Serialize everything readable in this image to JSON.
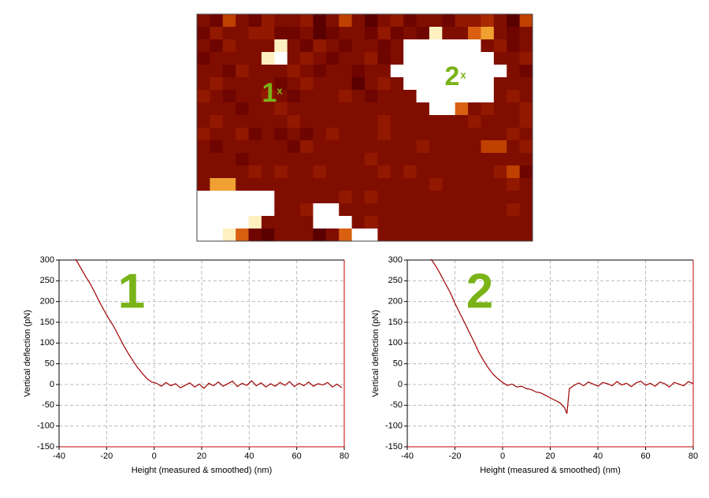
{
  "chart_data": [
    {
      "type": "heatmap",
      "colors": [
        "#400000",
        "#5a0000",
        "#6e0500",
        "#800e00",
        "#921800",
        "#a82a00",
        "#c04000",
        "#d86010",
        "#f0a030",
        "#fff0c0",
        "#ffffff"
      ],
      "values": [
        [
          3,
          2,
          6,
          3,
          2,
          4,
          3,
          3,
          4,
          1,
          3,
          6,
          3,
          1,
          3,
          4,
          2,
          3,
          3,
          2,
          4,
          4,
          5,
          3,
          1,
          6
        ],
        [
          2,
          4,
          3,
          3,
          4,
          4,
          2,
          2,
          3,
          1,
          2,
          3,
          3,
          2,
          4,
          2,
          3,
          2,
          9,
          3,
          3,
          7,
          8,
          3,
          2,
          3
        ],
        [
          3,
          2,
          4,
          3,
          3,
          3,
          9,
          3,
          2,
          4,
          3,
          2,
          3,
          3,
          2,
          3,
          10,
          10,
          10,
          10,
          10,
          10,
          3,
          4,
          2,
          3
        ],
        [
          2,
          3,
          3,
          3,
          3,
          9,
          10,
          3,
          4,
          3,
          2,
          3,
          3,
          4,
          2,
          3,
          10,
          10,
          10,
          10,
          10,
          10,
          10,
          3,
          3,
          4
        ],
        [
          3,
          3,
          2,
          4,
          3,
          3,
          3,
          4,
          3,
          2,
          3,
          3,
          2,
          3,
          3,
          10,
          10,
          10,
          10,
          10,
          10,
          10,
          10,
          10,
          3,
          2
        ],
        [
          3,
          4,
          3,
          3,
          3,
          3,
          2,
          3,
          4,
          3,
          3,
          3,
          1,
          3,
          4,
          3,
          10,
          10,
          10,
          10,
          10,
          10,
          10,
          3,
          3,
          3
        ],
        [
          4,
          3,
          2,
          3,
          3,
          4,
          3,
          2,
          3,
          3,
          3,
          4,
          3,
          2,
          3,
          3,
          3,
          10,
          10,
          10,
          10,
          10,
          10,
          3,
          4,
          3
        ],
        [
          3,
          3,
          3,
          2,
          3,
          3,
          4,
          3,
          3,
          3,
          3,
          3,
          3,
          3,
          3,
          3,
          3,
          3,
          10,
          10,
          7,
          3,
          4,
          3,
          3,
          4
        ],
        [
          3,
          4,
          3,
          3,
          3,
          3,
          3,
          4,
          3,
          3,
          3,
          3,
          3,
          3,
          4,
          3,
          3,
          3,
          3,
          3,
          3,
          4,
          3,
          3,
          3,
          4
        ],
        [
          4,
          3,
          3,
          4,
          2,
          3,
          2,
          3,
          2,
          3,
          4,
          3,
          3,
          3,
          4,
          3,
          3,
          3,
          3,
          3,
          3,
          3,
          3,
          3,
          4,
          3
        ],
        [
          3,
          2,
          3,
          3,
          3,
          3,
          3,
          2,
          4,
          3,
          3,
          3,
          3,
          3,
          3,
          3,
          3,
          4,
          3,
          3,
          3,
          3,
          6,
          6,
          3,
          4
        ],
        [
          3,
          3,
          3,
          2,
          3,
          3,
          3,
          3,
          3,
          3,
          3,
          3,
          3,
          4,
          3,
          3,
          3,
          3,
          3,
          3,
          3,
          3,
          3,
          3,
          3,
          3
        ],
        [
          3,
          3,
          3,
          3,
          4,
          3,
          4,
          3,
          3,
          4,
          3,
          3,
          3,
          3,
          4,
          3,
          4,
          3,
          3,
          3,
          3,
          3,
          3,
          4,
          6,
          2
        ],
        [
          3,
          8,
          8,
          3,
          3,
          3,
          3,
          3,
          3,
          3,
          3,
          3,
          3,
          3,
          3,
          3,
          3,
          3,
          4,
          3,
          3,
          3,
          3,
          3,
          4,
          3
        ],
        [
          10,
          10,
          10,
          10,
          10,
          10,
          3,
          3,
          3,
          3,
          3,
          4,
          3,
          4,
          3,
          3,
          3,
          3,
          3,
          3,
          3,
          3,
          3,
          3,
          3,
          3
        ],
        [
          10,
          10,
          10,
          10,
          10,
          10,
          3,
          3,
          4,
          10,
          10,
          3,
          3,
          3,
          3,
          3,
          3,
          3,
          3,
          3,
          3,
          3,
          3,
          3,
          4,
          3
        ],
        [
          10,
          10,
          10,
          10,
          9,
          3,
          3,
          3,
          3,
          10,
          10,
          10,
          3,
          4,
          3,
          3,
          3,
          3,
          3,
          3,
          3,
          3,
          3,
          3,
          3,
          3
        ],
        [
          10,
          10,
          9,
          7,
          2,
          1,
          3,
          3,
          3,
          1,
          3,
          7,
          10,
          10,
          3,
          3,
          3,
          3,
          3,
          3,
          3,
          3,
          3,
          3,
          3,
          3
        ]
      ],
      "annotations": [
        "1",
        "x",
        "2",
        "x"
      ]
    },
    {
      "type": "line",
      "annotation": "1",
      "xlabel": "Height (measured & smoothed) (nm)",
      "ylabel": "Vertical deflection  (pN)",
      "xlim": [
        -40,
        80
      ],
      "xticks": [
        -40,
        -20,
        0,
        20,
        40,
        60,
        80
      ],
      "ylim": [
        -150,
        300
      ],
      "yticks": [
        -150,
        -100,
        -50,
        0,
        50,
        100,
        150,
        200,
        250,
        300
      ],
      "grid": true,
      "x": [
        -33,
        -31,
        -29,
        -27,
        -25,
        -23,
        -21,
        -19,
        -17,
        -15,
        -13,
        -11,
        -9,
        -7,
        -5,
        -3,
        -1,
        1,
        3,
        5,
        7,
        9,
        11,
        13,
        15,
        17,
        19,
        21,
        23,
        25,
        27,
        29,
        31,
        33,
        35,
        37,
        39,
        41,
        43,
        45,
        47,
        49,
        51,
        53,
        55,
        57,
        59,
        61,
        63,
        65,
        67,
        69,
        71,
        73,
        75,
        77,
        79
      ],
      "series": [
        {
          "color": "#a00000",
          "values": [
            302,
            282,
            262,
            244,
            222,
            199,
            178,
            158,
            140,
            118,
            96,
            76,
            58,
            41,
            27,
            14,
            6,
            3,
            -4,
            5,
            -3,
            2,
            -8,
            -2,
            4,
            -6,
            1,
            -9,
            3,
            -3,
            6,
            -4,
            2,
            8,
            -5,
            3,
            -2,
            9,
            -3,
            4,
            -6,
            2,
            -4,
            5,
            -2,
            7,
            -5,
            3,
            -3,
            6,
            -4,
            2,
            -1,
            5,
            -6,
            1,
            -8
          ]
        }
      ]
    },
    {
      "type": "line",
      "annotation": "2",
      "xlabel": "Height (measured & smoothed) (nm)",
      "ylabel": "Vertical deflection  (pN)",
      "xlim": [
        -40,
        80
      ],
      "xticks": [
        -40,
        -20,
        0,
        20,
        40,
        60,
        80
      ],
      "ylim": [
        -150,
        300
      ],
      "yticks": [
        -150,
        -100,
        -50,
        0,
        50,
        100,
        150,
        200,
        250,
        300
      ],
      "grid": true,
      "x": [
        -30,
        -28,
        -26,
        -24,
        -22,
        -20,
        -18,
        -16,
        -14,
        -12,
        -10,
        -8,
        -6,
        -4,
        -2,
        0,
        2,
        4,
        6,
        8,
        10,
        12,
        14,
        16,
        18,
        20,
        22,
        24,
        26,
        27,
        28,
        30,
        32,
        34,
        36,
        38,
        40,
        42,
        44,
        46,
        48,
        50,
        52,
        54,
        56,
        58,
        60,
        62,
        64,
        66,
        68,
        70,
        72,
        74,
        76,
        78,
        80
      ],
      "series": [
        {
          "color": "#a00000",
          "values": [
            302,
            285,
            265,
            243,
            222,
            196,
            172,
            150,
            126,
            103,
            78,
            58,
            40,
            25,
            14,
            5,
            -2,
            1,
            -6,
            -4,
            -10,
            -12,
            -18,
            -20,
            -26,
            -32,
            -38,
            -44,
            -56,
            -70,
            -10,
            -2,
            4,
            -3,
            6,
            1,
            -4,
            5,
            2,
            -3,
            7,
            -1,
            3,
            -5,
            4,
            8,
            -2,
            3,
            -4,
            6,
            2,
            -6,
            5,
            1,
            -3,
            7,
            2
          ]
        }
      ]
    }
  ]
}
